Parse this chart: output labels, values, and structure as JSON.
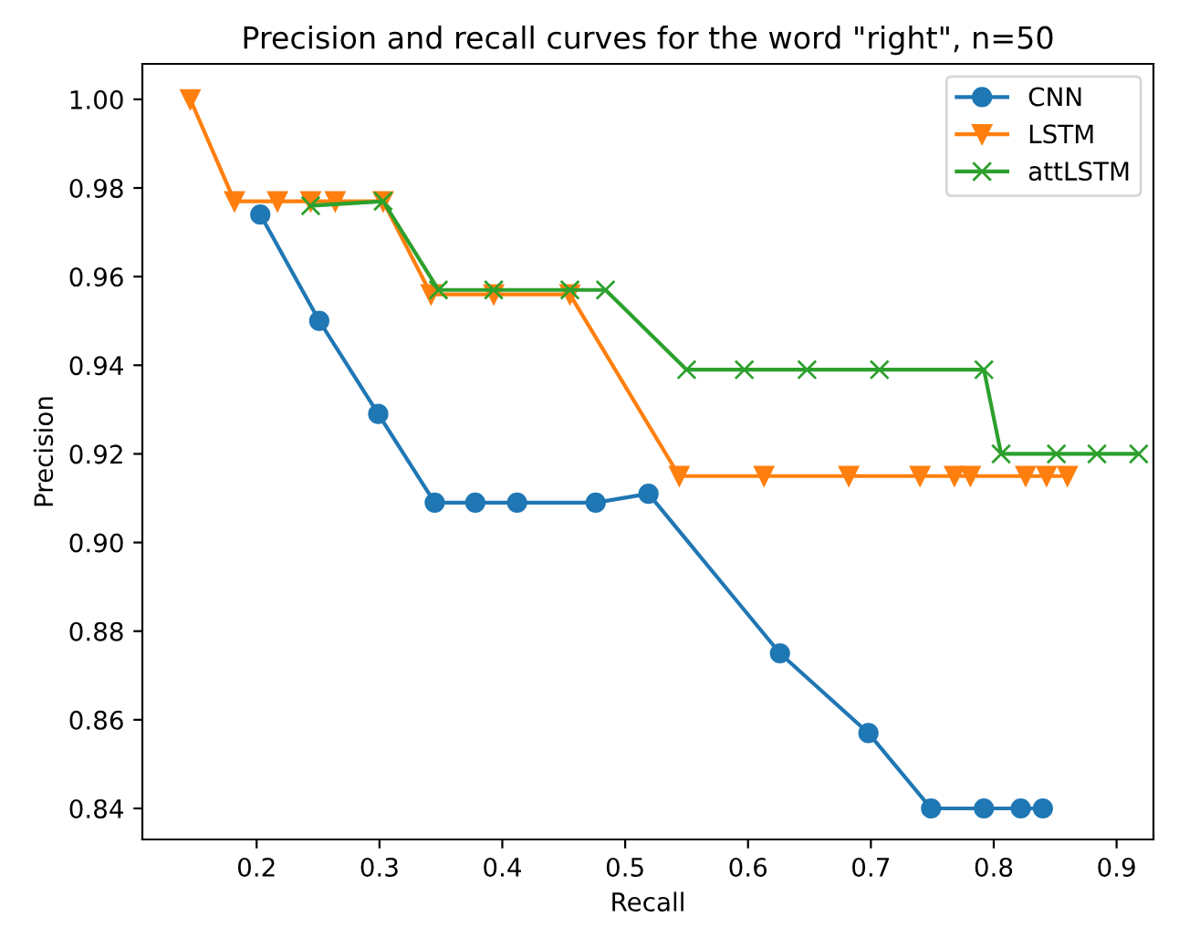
{
  "chart_data": {
    "type": "line",
    "title": "Precision and recall curves for the word \"right\", n=50",
    "xlabel": "Recall",
    "ylabel": "Precision",
    "xlim": [
      0.107,
      0.93
    ],
    "ylim": [
      0.833,
      1.008
    ],
    "xticks": [
      {
        "value": 0.2,
        "label": "0.2"
      },
      {
        "value": 0.3,
        "label": "0.3"
      },
      {
        "value": 0.4,
        "label": "0.4"
      },
      {
        "value": 0.5,
        "label": "0.5"
      },
      {
        "value": 0.6,
        "label": "0.6"
      },
      {
        "value": 0.7,
        "label": "0.7"
      },
      {
        "value": 0.8,
        "label": "0.8"
      },
      {
        "value": 0.9,
        "label": "0.9"
      }
    ],
    "yticks": [
      {
        "value": 0.84,
        "label": "0.84"
      },
      {
        "value": 0.86,
        "label": "0.86"
      },
      {
        "value": 0.88,
        "label": "0.88"
      },
      {
        "value": 0.9,
        "label": "0.90"
      },
      {
        "value": 0.92,
        "label": "0.92"
      },
      {
        "value": 0.94,
        "label": "0.94"
      },
      {
        "value": 0.96,
        "label": "0.96"
      },
      {
        "value": 0.98,
        "label": "0.98"
      },
      {
        "value": 1.0,
        "label": "1.00"
      }
    ],
    "grid": false,
    "legend": "top right",
    "line_style": "solid",
    "series": [
      {
        "name": "CNN",
        "color": "#1f77b4",
        "marker": "circle",
        "x": [
          0.203,
          0.251,
          0.299,
          0.345,
          0.378,
          0.412,
          0.476,
          0.519,
          0.626,
          0.698,
          0.749,
          0.792,
          0.822,
          0.84
        ],
        "values": [
          0.974,
          0.95,
          0.929,
          0.909,
          0.909,
          0.909,
          0.909,
          0.911,
          0.875,
          0.857,
          0.84,
          0.84,
          0.84,
          0.84
        ]
      },
      {
        "name": "LSTM",
        "color": "#ff7f0e",
        "marker": "triangle",
        "x": [
          0.146,
          0.182,
          0.217,
          0.244,
          0.264,
          0.303,
          0.342,
          0.393,
          0.455,
          0.544,
          0.613,
          0.682,
          0.74,
          0.768,
          0.781,
          0.826,
          0.843,
          0.86
        ],
        "values": [
          1.0,
          0.977,
          0.977,
          0.977,
          0.977,
          0.977,
          0.956,
          0.956,
          0.956,
          0.915,
          0.915,
          0.915,
          0.915,
          0.915,
          0.915,
          0.915,
          0.915,
          0.915
        ]
      },
      {
        "name": "attLSTM",
        "color": "#2ca02c",
        "marker": "cross",
        "x": [
          0.244,
          0.303,
          0.348,
          0.393,
          0.455,
          0.484,
          0.55,
          0.597,
          0.648,
          0.707,
          0.792,
          0.806,
          0.851,
          0.884,
          0.918
        ],
        "values": [
          0.976,
          0.977,
          0.957,
          0.957,
          0.957,
          0.957,
          0.939,
          0.939,
          0.939,
          0.939,
          0.939,
          0.92,
          0.92,
          0.92,
          0.92
        ]
      }
    ]
  }
}
